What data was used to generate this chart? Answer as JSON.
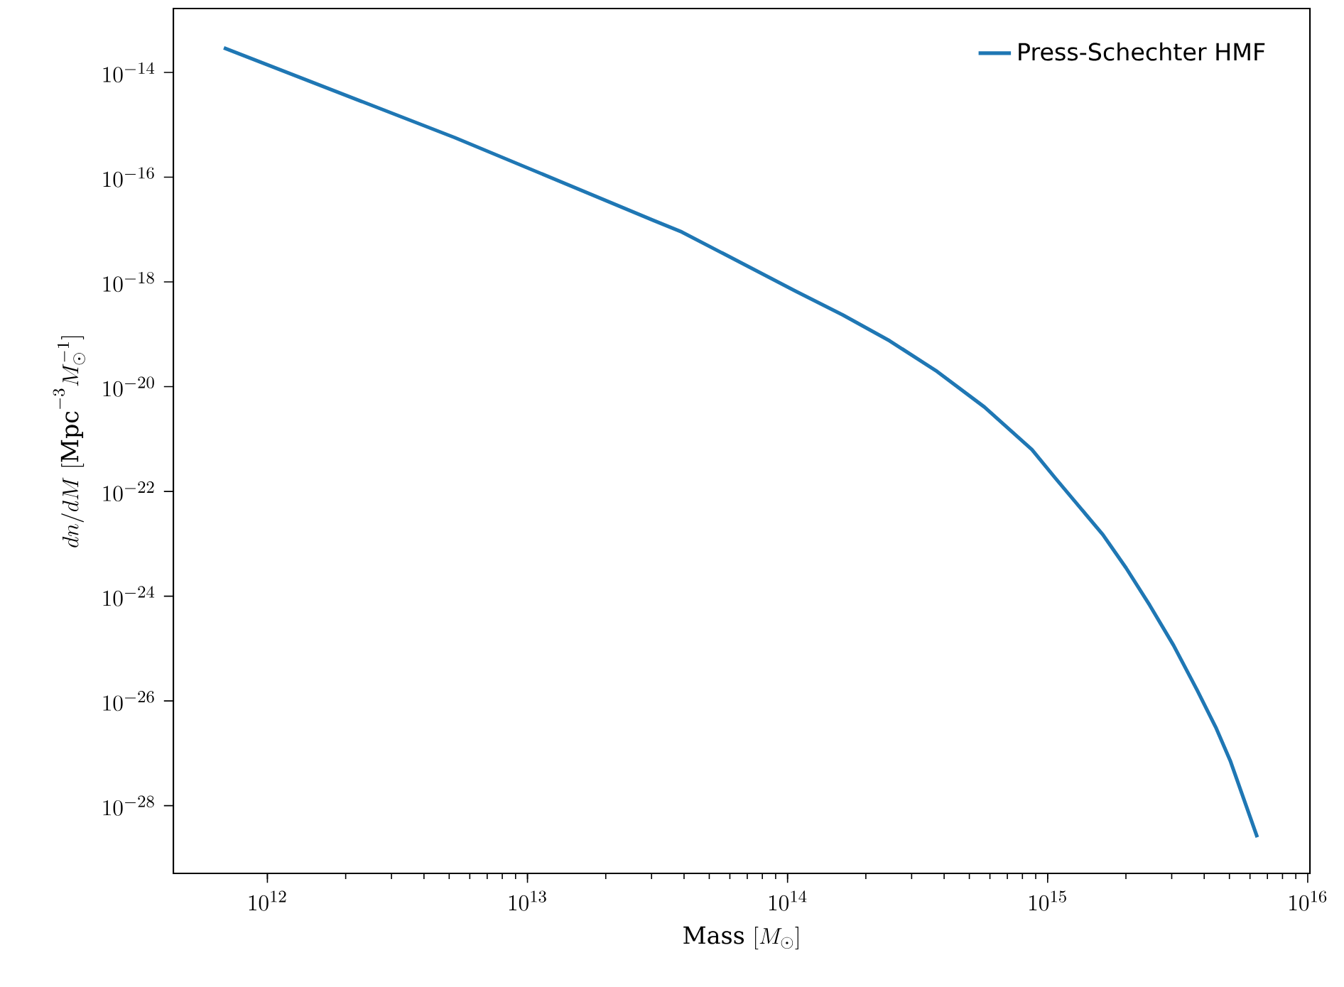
{
  "chart_data": {
    "type": "line",
    "log": "xy",
    "xlabel": "\\mathrm{Mass}\\ [M_\\odot]",
    "ylabel": "dn/dM\\ [\\mathrm{Mpc}^{-3}M_\\odot^{-1}]",
    "xlim": [
      435000000000.0,
      1.02e+16
    ],
    "ylim": [
      5.1e-30,
      1.66e-13
    ],
    "xticks": [
      {
        "value": 1000000000000.0,
        "label": "10^{12}"
      },
      {
        "value": 10000000000000.0,
        "label": "10^{13}"
      },
      {
        "value": 100000000000000.0,
        "label": "10^{14}"
      },
      {
        "value": 1000000000000000.0,
        "label": "10^{15}"
      },
      {
        "value": 1e+16,
        "label": "10^{16}"
      }
    ],
    "yticks": [
      {
        "value": 1e-28,
        "label": "10^{-28}"
      },
      {
        "value": 1e-26,
        "label": "10^{-26}"
      },
      {
        "value": 1e-24,
        "label": "10^{-24}"
      },
      {
        "value": 1e-22,
        "label": "10^{-22}"
      },
      {
        "value": 1e-20,
        "label": "10^{-20}"
      },
      {
        "value": 1e-18,
        "label": "10^{-18}"
      },
      {
        "value": 1e-16,
        "label": "10^{-16}"
      },
      {
        "value": 1e-14,
        "label": "10^{-14}"
      }
    ],
    "legend": "top right",
    "series": [
      {
        "name": "Press-Schechter HMF",
        "color": "#1f77b4",
        "x": [
          680000000000.0,
          5250000000000.0,
          30500000000000.0,
          39200000000000.0,
          107000000000000.0,
          163000000000000.0,
          247000000000000.0,
          376000000000000.0,
          571000000000000.0,
          870000000000000.0,
          1070000000000000.0,
          1630000000000000.0,
          2000000000000000.0,
          2470000000000000.0,
          3050000000000000.0,
          3760000000000000.0,
          4450000000000000.0,
          5050000000000000.0,
          6400000000000000.0
        ],
        "values": [
          2.95e-14,
          5.7e-16,
          1.5e-17,
          9e-18,
          6.7e-19,
          2.35e-19,
          7.5e-20,
          1.95e-20,
          4.1e-21,
          6.3e-22,
          1.8e-22,
          1.5e-23,
          3.5e-24,
          6.7e-25,
          1.15e-25,
          1.6e-26,
          3e-27,
          7e-28,
          2.5e-29
        ]
      }
    ]
  }
}
